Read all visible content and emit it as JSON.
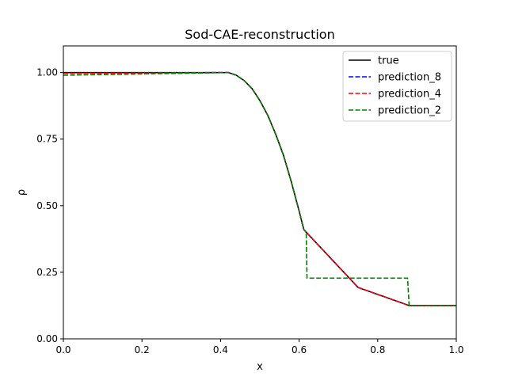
{
  "chart_data": {
    "type": "line",
    "title": "Sod-CAE-reconstruction",
    "xlabel": "x",
    "ylabel": "ρ",
    "xlim": [
      0.0,
      1.0
    ],
    "ylim": [
      0.0,
      1.1
    ],
    "x_ticks": [
      0.0,
      0.2,
      0.4,
      0.6,
      0.8,
      1.0
    ],
    "x_tick_labels": [
      "0.0",
      "0.2",
      "0.4",
      "0.6",
      "0.8",
      "1.0"
    ],
    "y_ticks": [
      0.0,
      0.25,
      0.5,
      0.75,
      1.0
    ],
    "y_tick_labels": [
      "0.00",
      "0.25",
      "0.50",
      "0.75",
      "1.00"
    ],
    "grid": false,
    "legend_position": "top-right",
    "series": [
      {
        "name": "true",
        "color": "#000000",
        "style": "solid",
        "x": [
          0.0,
          0.42,
          0.44,
          0.46,
          0.48,
          0.5,
          0.52,
          0.54,
          0.56,
          0.58,
          0.6,
          0.612,
          0.75,
          0.88,
          1.0
        ],
        "y": [
          1.0,
          1.0,
          0.99,
          0.97,
          0.94,
          0.895,
          0.84,
          0.77,
          0.69,
          0.59,
          0.48,
          0.41,
          0.193,
          0.125,
          0.125
        ]
      },
      {
        "name": "prediction_8",
        "color": "#0000ff",
        "style": "dashed",
        "x": [
          0.0,
          0.42,
          0.44,
          0.46,
          0.48,
          0.5,
          0.52,
          0.54,
          0.56,
          0.58,
          0.6,
          0.612,
          0.75,
          0.88,
          1.0
        ],
        "y": [
          0.998,
          1.0,
          0.99,
          0.97,
          0.94,
          0.895,
          0.84,
          0.77,
          0.69,
          0.59,
          0.48,
          0.41,
          0.193,
          0.125,
          0.125
        ]
      },
      {
        "name": "prediction_4",
        "color": "#ff0000",
        "style": "dashed",
        "x": [
          0.0,
          0.42,
          0.44,
          0.46,
          0.48,
          0.5,
          0.52,
          0.54,
          0.56,
          0.58,
          0.6,
          0.612,
          0.75,
          0.88,
          1.0
        ],
        "y": [
          0.997,
          1.0,
          0.99,
          0.97,
          0.94,
          0.895,
          0.84,
          0.77,
          0.69,
          0.59,
          0.48,
          0.41,
          0.193,
          0.125,
          0.125
        ]
      },
      {
        "name": "prediction_2",
        "color": "#008000",
        "style": "dashed",
        "x": [
          0.0,
          0.42,
          0.44,
          0.46,
          0.48,
          0.5,
          0.52,
          0.54,
          0.56,
          0.58,
          0.6,
          0.612,
          0.618,
          0.62,
          0.876,
          0.88,
          1.0
        ],
        "y": [
          0.99,
          1.0,
          0.99,
          0.97,
          0.94,
          0.895,
          0.84,
          0.77,
          0.69,
          0.59,
          0.48,
          0.41,
          0.4,
          0.228,
          0.228,
          0.125,
          0.125
        ]
      }
    ]
  }
}
